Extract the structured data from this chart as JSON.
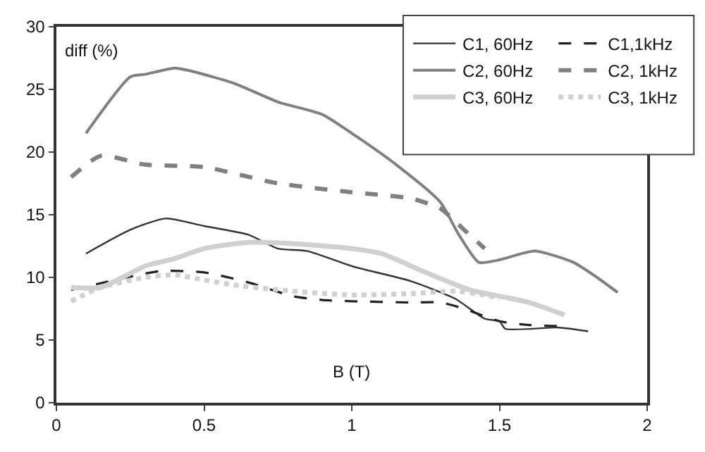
{
  "chart_data": {
    "type": "line",
    "xlabel": "B (T)",
    "ylabel": "diff (%)",
    "xlim": [
      0,
      2
    ],
    "xticks": [
      0,
      0.5,
      1,
      1.5,
      2
    ],
    "ylim": [
      0,
      30
    ],
    "yticks": [
      0,
      5,
      10,
      15,
      20,
      25,
      30
    ],
    "legend": "top right",
    "marker": "none",
    "series": [
      {
        "name": "C1, 60Hz",
        "color": "#333333",
        "line_style": "solid",
        "x": [
          0.1,
          0.25,
          0.37,
          0.5,
          0.65,
          0.75,
          0.85,
          1.0,
          1.2,
          1.35,
          1.45,
          1.5,
          1.52,
          1.7,
          1.8
        ],
        "values": [
          11.9,
          13.8,
          14.7,
          14.1,
          13.4,
          12.3,
          12.1,
          10.9,
          9.7,
          8.3,
          6.7,
          6.5,
          5.9,
          6.0,
          5.7
        ]
      },
      {
        "name": "C1,1kHz",
        "color": "#222222",
        "line_style": "dashed",
        "x": [
          0.05,
          0.2,
          0.35,
          0.5,
          0.65,
          0.8,
          0.9,
          1.0,
          1.2,
          1.3,
          1.38,
          1.5,
          1.6,
          1.72
        ],
        "values": [
          9.0,
          9.8,
          10.5,
          10.4,
          9.6,
          8.5,
          8.2,
          8.1,
          8.0,
          8.0,
          7.5,
          6.5,
          6.2,
          6.1
        ]
      },
      {
        "name": "C2, 60Hz",
        "color": "#808080",
        "line_style": "solid",
        "x": [
          0.1,
          0.25,
          0.3,
          0.4,
          0.45,
          0.6,
          0.75,
          0.9,
          1.0,
          1.15,
          1.3,
          1.36,
          1.43,
          1.5,
          1.62,
          1.75,
          1.83,
          1.9
        ],
        "values": [
          21.5,
          26.0,
          26.2,
          26.7,
          26.5,
          25.5,
          24.0,
          23.0,
          21.5,
          19.0,
          16.0,
          13.5,
          11.2,
          11.4,
          12.1,
          11.2,
          10.0,
          8.8
        ]
      },
      {
        "name": "C2, 1kHz",
        "color": "#808080",
        "line_style": "dashed",
        "x": [
          0.05,
          0.15,
          0.3,
          0.5,
          0.75,
          1.0,
          1.2,
          1.3,
          1.38,
          1.45
        ],
        "values": [
          18.0,
          19.7,
          19.0,
          18.8,
          17.5,
          16.8,
          16.3,
          15.5,
          13.8,
          12.3
        ]
      },
      {
        "name": "C3, 60Hz",
        "color": "#d0d0d0",
        "line_style": "solid",
        "x": [
          0.05,
          0.15,
          0.3,
          0.4,
          0.5,
          0.65,
          0.8,
          1.0,
          1.1,
          1.25,
          1.4,
          1.5,
          1.6,
          1.72
        ],
        "values": [
          9.2,
          9.2,
          10.9,
          11.5,
          12.3,
          12.8,
          12.7,
          12.3,
          11.9,
          10.4,
          9.0,
          8.5,
          8.0,
          7.0
        ]
      },
      {
        "name": "C3, 1kHz",
        "color": "#d0d0d0",
        "line_style": "dotted",
        "x": [
          0.05,
          0.15,
          0.3,
          0.4,
          0.5,
          0.6,
          0.8,
          1.0,
          1.2,
          1.35,
          1.45,
          1.5
        ],
        "values": [
          8.1,
          9.2,
          10.0,
          10.2,
          9.8,
          9.4,
          8.9,
          8.6,
          8.7,
          8.9,
          8.6,
          8.3
        ]
      }
    ]
  }
}
